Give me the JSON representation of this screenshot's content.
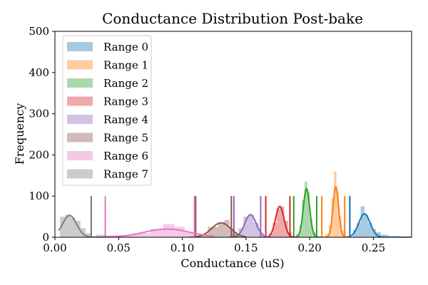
{
  "chart_data": {
    "type": "histogram",
    "title": "Conductance Distribution Post-bake",
    "xlabel": "Conductance (uS)",
    "ylabel": "Frequency",
    "xlim": [
      0.0,
      0.28
    ],
    "ylim": [
      0,
      500
    ],
    "xticks": [
      0.0,
      0.05,
      0.1,
      0.15,
      0.2,
      0.25
    ],
    "xtick_labels": [
      "0.00",
      "0.05",
      "0.10",
      "0.15",
      "0.20",
      "0.25"
    ],
    "yticks": [
      0,
      100,
      200,
      300,
      400,
      500
    ],
    "ytick_labels": [
      "0",
      "100",
      "200",
      "300",
      "400",
      "500"
    ],
    "grid": false,
    "legend_position": "top-left",
    "series": [
      {
        "name": "Range 0",
        "color": "#1f77b4",
        "bins": [
          [
            0.234,
            0.237,
            18
          ],
          [
            0.237,
            0.24,
            35
          ],
          [
            0.24,
            0.243,
            75
          ],
          [
            0.243,
            0.246,
            55
          ],
          [
            0.246,
            0.249,
            35
          ],
          [
            0.249,
            0.252,
            20
          ],
          [
            0.252,
            0.256,
            12
          ],
          [
            0.256,
            0.262,
            6
          ],
          [
            0.262,
            0.27,
            3
          ]
        ],
        "kde_peak_x": 0.243,
        "kde_peak_y": 57,
        "kde_sigma": 0.0045,
        "kde_range": [
          0.228,
          0.28
        ],
        "bounds": [
          0.2315,
          0.2315
        ]
      },
      {
        "name": "Range 1",
        "color": "#ff7f0e",
        "bins": [
          [
            0.212,
            0.215,
            8
          ],
          [
            0.215,
            0.217,
            30
          ],
          [
            0.217,
            0.219,
            95
          ],
          [
            0.219,
            0.221,
            160
          ],
          [
            0.221,
            0.223,
            110
          ],
          [
            0.223,
            0.225,
            50
          ],
          [
            0.225,
            0.228,
            15
          ]
        ],
        "kde_peak_x": 0.2205,
        "kde_peak_y": 122,
        "kde_sigma": 0.0022,
        "kde_range": [
          0.209,
          0.231
        ],
        "bounds": [
          0.2095,
          0.2275
        ]
      },
      {
        "name": "Range 2",
        "color": "#2ca02c",
        "bins": [
          [
            0.189,
            0.192,
            8
          ],
          [
            0.192,
            0.194,
            30
          ],
          [
            0.194,
            0.196,
            90
          ],
          [
            0.196,
            0.198,
            135
          ],
          [
            0.198,
            0.2,
            110
          ],
          [
            0.2,
            0.202,
            45
          ],
          [
            0.202,
            0.205,
            12
          ]
        ],
        "kde_peak_x": 0.1975,
        "kde_peak_y": 118,
        "kde_sigma": 0.0025,
        "kde_range": [
          0.186,
          0.209
        ],
        "bounds": [
          0.1875,
          0.2055
        ]
      },
      {
        "name": "Range 3",
        "color": "#d62728",
        "bins": [
          [
            0.168,
            0.171,
            10
          ],
          [
            0.171,
            0.174,
            35
          ],
          [
            0.174,
            0.177,
            70
          ],
          [
            0.177,
            0.18,
            75
          ],
          [
            0.18,
            0.183,
            40
          ],
          [
            0.183,
            0.186,
            12
          ]
        ],
        "kde_peak_x": 0.1765,
        "kde_peak_y": 75,
        "kde_sigma": 0.0033,
        "kde_range": [
          0.164,
          0.19
        ],
        "bounds": [
          0.1655,
          0.1845
        ]
      },
      {
        "name": "Range 4",
        "color": "#9467bd",
        "bins": [
          [
            0.139,
            0.144,
            8
          ],
          [
            0.144,
            0.148,
            22
          ],
          [
            0.148,
            0.152,
            50
          ],
          [
            0.152,
            0.156,
            55
          ],
          [
            0.156,
            0.16,
            35
          ],
          [
            0.16,
            0.164,
            12
          ]
        ],
        "kde_peak_x": 0.1535,
        "kde_peak_y": 55,
        "kde_sigma": 0.0045,
        "kde_range": [
          0.136,
          0.17
        ],
        "bounds": [
          0.1405,
          0.1615
        ]
      },
      {
        "name": "Range 5",
        "color": "#8c564b",
        "bins": [
          [
            0.112,
            0.12,
            8
          ],
          [
            0.12,
            0.128,
            25
          ],
          [
            0.128,
            0.133,
            35
          ],
          [
            0.133,
            0.137,
            42
          ],
          [
            0.137,
            0.141,
            22
          ],
          [
            0.141,
            0.145,
            8
          ]
        ],
        "kde_peak_x": 0.1305,
        "kde_peak_y": 35,
        "kde_sigma": 0.0075,
        "kde_range": [
          0.105,
          0.15
        ],
        "bounds": [
          0.1105,
          0.1385
        ]
      },
      {
        "name": "Range 6",
        "color": "#e377c2",
        "bins": [
          [
            0.04,
            0.06,
            5
          ],
          [
            0.06,
            0.075,
            10
          ],
          [
            0.075,
            0.085,
            20
          ],
          [
            0.085,
            0.094,
            32
          ],
          [
            0.094,
            0.102,
            25
          ],
          [
            0.102,
            0.11,
            12
          ]
        ],
        "kde_peak_x": 0.088,
        "kde_peak_y": 20,
        "kde_sigma": 0.018,
        "kde_range": [
          0.03,
          0.125
        ],
        "bounds": [
          0.0395,
          0.1095
        ]
      },
      {
        "name": "Range 7",
        "color": "#7f7f7f",
        "bins": [
          [
            0.004,
            0.008,
            50
          ],
          [
            0.008,
            0.012,
            55
          ],
          [
            0.012,
            0.016,
            48
          ],
          [
            0.016,
            0.02,
            40
          ],
          [
            0.02,
            0.024,
            22
          ],
          [
            0.024,
            0.028,
            10
          ],
          [
            0.032,
            0.04,
            6
          ]
        ],
        "kde_peak_x": 0.0115,
        "kde_peak_y": 53,
        "kde_sigma": 0.0055,
        "kde_range": [
          0.003,
          0.045
        ],
        "bounds": [
          0.0285,
          0.0285
        ]
      }
    ]
  }
}
